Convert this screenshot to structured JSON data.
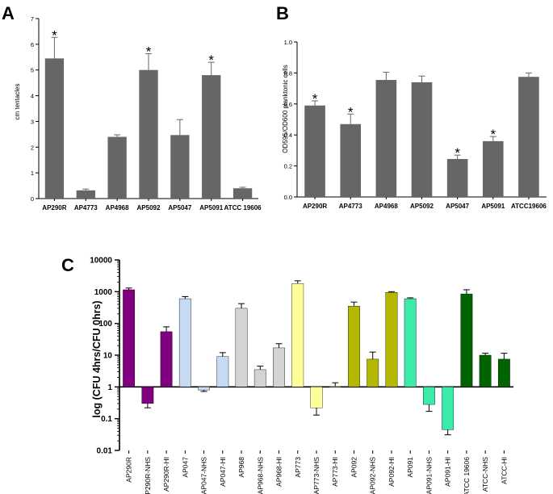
{
  "chart_data": [
    {
      "id": "A",
      "panel_label": "A",
      "type": "bar",
      "ylabel": "cm tentacles",
      "xlabel": "",
      "ylim": [
        0,
        7
      ],
      "yticks": [
        0,
        1,
        2,
        3,
        4,
        5,
        6,
        7
      ],
      "bar_color": "#666666",
      "categories": [
        "AP290R",
        "AP4773",
        "AP4968",
        "AP5092",
        "AP5047",
        "AP5091",
        "ATCC 19606"
      ],
      "values": [
        5.45,
        0.32,
        2.4,
        5.0,
        2.47,
        4.8,
        0.4
      ],
      "errors": [
        0.82,
        0.05,
        0.08,
        0.63,
        0.6,
        0.5,
        0.04
      ],
      "significant": [
        true,
        false,
        false,
        true,
        false,
        true,
        false
      ],
      "marker": "*"
    },
    {
      "id": "B",
      "panel_label": "B",
      "type": "bar",
      "ylabel": "OD595/OD600 planktonic cells",
      "xlabel": "",
      "ylim": [
        0,
        1.0
      ],
      "yticks": [
        0.0,
        0.2,
        0.4,
        0.6,
        0.8,
        1.0
      ],
      "bar_color": "#666666",
      "categories": [
        "AP290R",
        "AP4773",
        "AP4968",
        "AP5092",
        "AP5047",
        "AP5091",
        "ATCC19606"
      ],
      "values": [
        0.59,
        0.47,
        0.755,
        0.74,
        0.245,
        0.36,
        0.775
      ],
      "errors": [
        0.03,
        0.065,
        0.05,
        0.04,
        0.025,
        0.03,
        0.025
      ],
      "significant": [
        true,
        true,
        false,
        false,
        true,
        true,
        false
      ],
      "marker": "*"
    },
    {
      "id": "C",
      "panel_label": "C",
      "type": "bar",
      "yscale": "log",
      "ylabel": "log (CFU 4hrs/CFU 0hrs)",
      "xlabel": "",
      "ylim": [
        0.01,
        10000
      ],
      "yticks": [
        "0.01",
        "0.1",
        "1",
        "10",
        "100",
        "1000",
        "10000"
      ],
      "baseline": 1,
      "categories": [
        "AP290R",
        "AP290R-NHS",
        "AP290R-HI",
        "AP047",
        "AP047-NHS",
        "AP047-HI",
        "AP968",
        "AP968-NHS",
        "AP968-HI",
        "AP773",
        "AP773-NHS",
        "AP773-HI",
        "AP092",
        "AP092-NHS",
        "AP092-HI",
        "AP091",
        "AP091-NHS",
        "AP091-HI",
        "ATCC 19606",
        "ATCC-NHS",
        "ATCC-HI"
      ],
      "values": [
        1150,
        0.3,
        55,
        600,
        0.8,
        9,
        300,
        3.5,
        17,
        1800,
        0.22,
        1.05,
        350,
        7.5,
        950,
        600,
        0.28,
        0.045,
        850,
        10,
        7.5
      ],
      "err_high": [
        1300,
        0.3,
        78,
        700,
        0.8,
        12,
        420,
        4.5,
        23,
        2200,
        0.22,
        1.35,
        470,
        12.5,
        1000,
        640,
        0.28,
        0.045,
        1150,
        11.5,
        11.5
      ],
      "err_low": [
        1150,
        0.22,
        55,
        600,
        0.72,
        9,
        300,
        3.5,
        17,
        1800,
        0.13,
        1.05,
        350,
        7.5,
        950,
        600,
        0.17,
        0.031,
        850,
        10,
        7.5
      ],
      "colors": [
        "#800080",
        "#800080",
        "#800080",
        "#c6dbf3",
        "#c6dbf3",
        "#c6dbf3",
        "#d3d3d3",
        "#d3d3d3",
        "#d3d3d3",
        "#ffff99",
        "#ffff99",
        "#ffff99",
        "#b5b800",
        "#b5b800",
        "#b5b800",
        "#3deba8",
        "#3deba8",
        "#3deba8",
        "#006400",
        "#006400",
        "#006400"
      ]
    }
  ]
}
